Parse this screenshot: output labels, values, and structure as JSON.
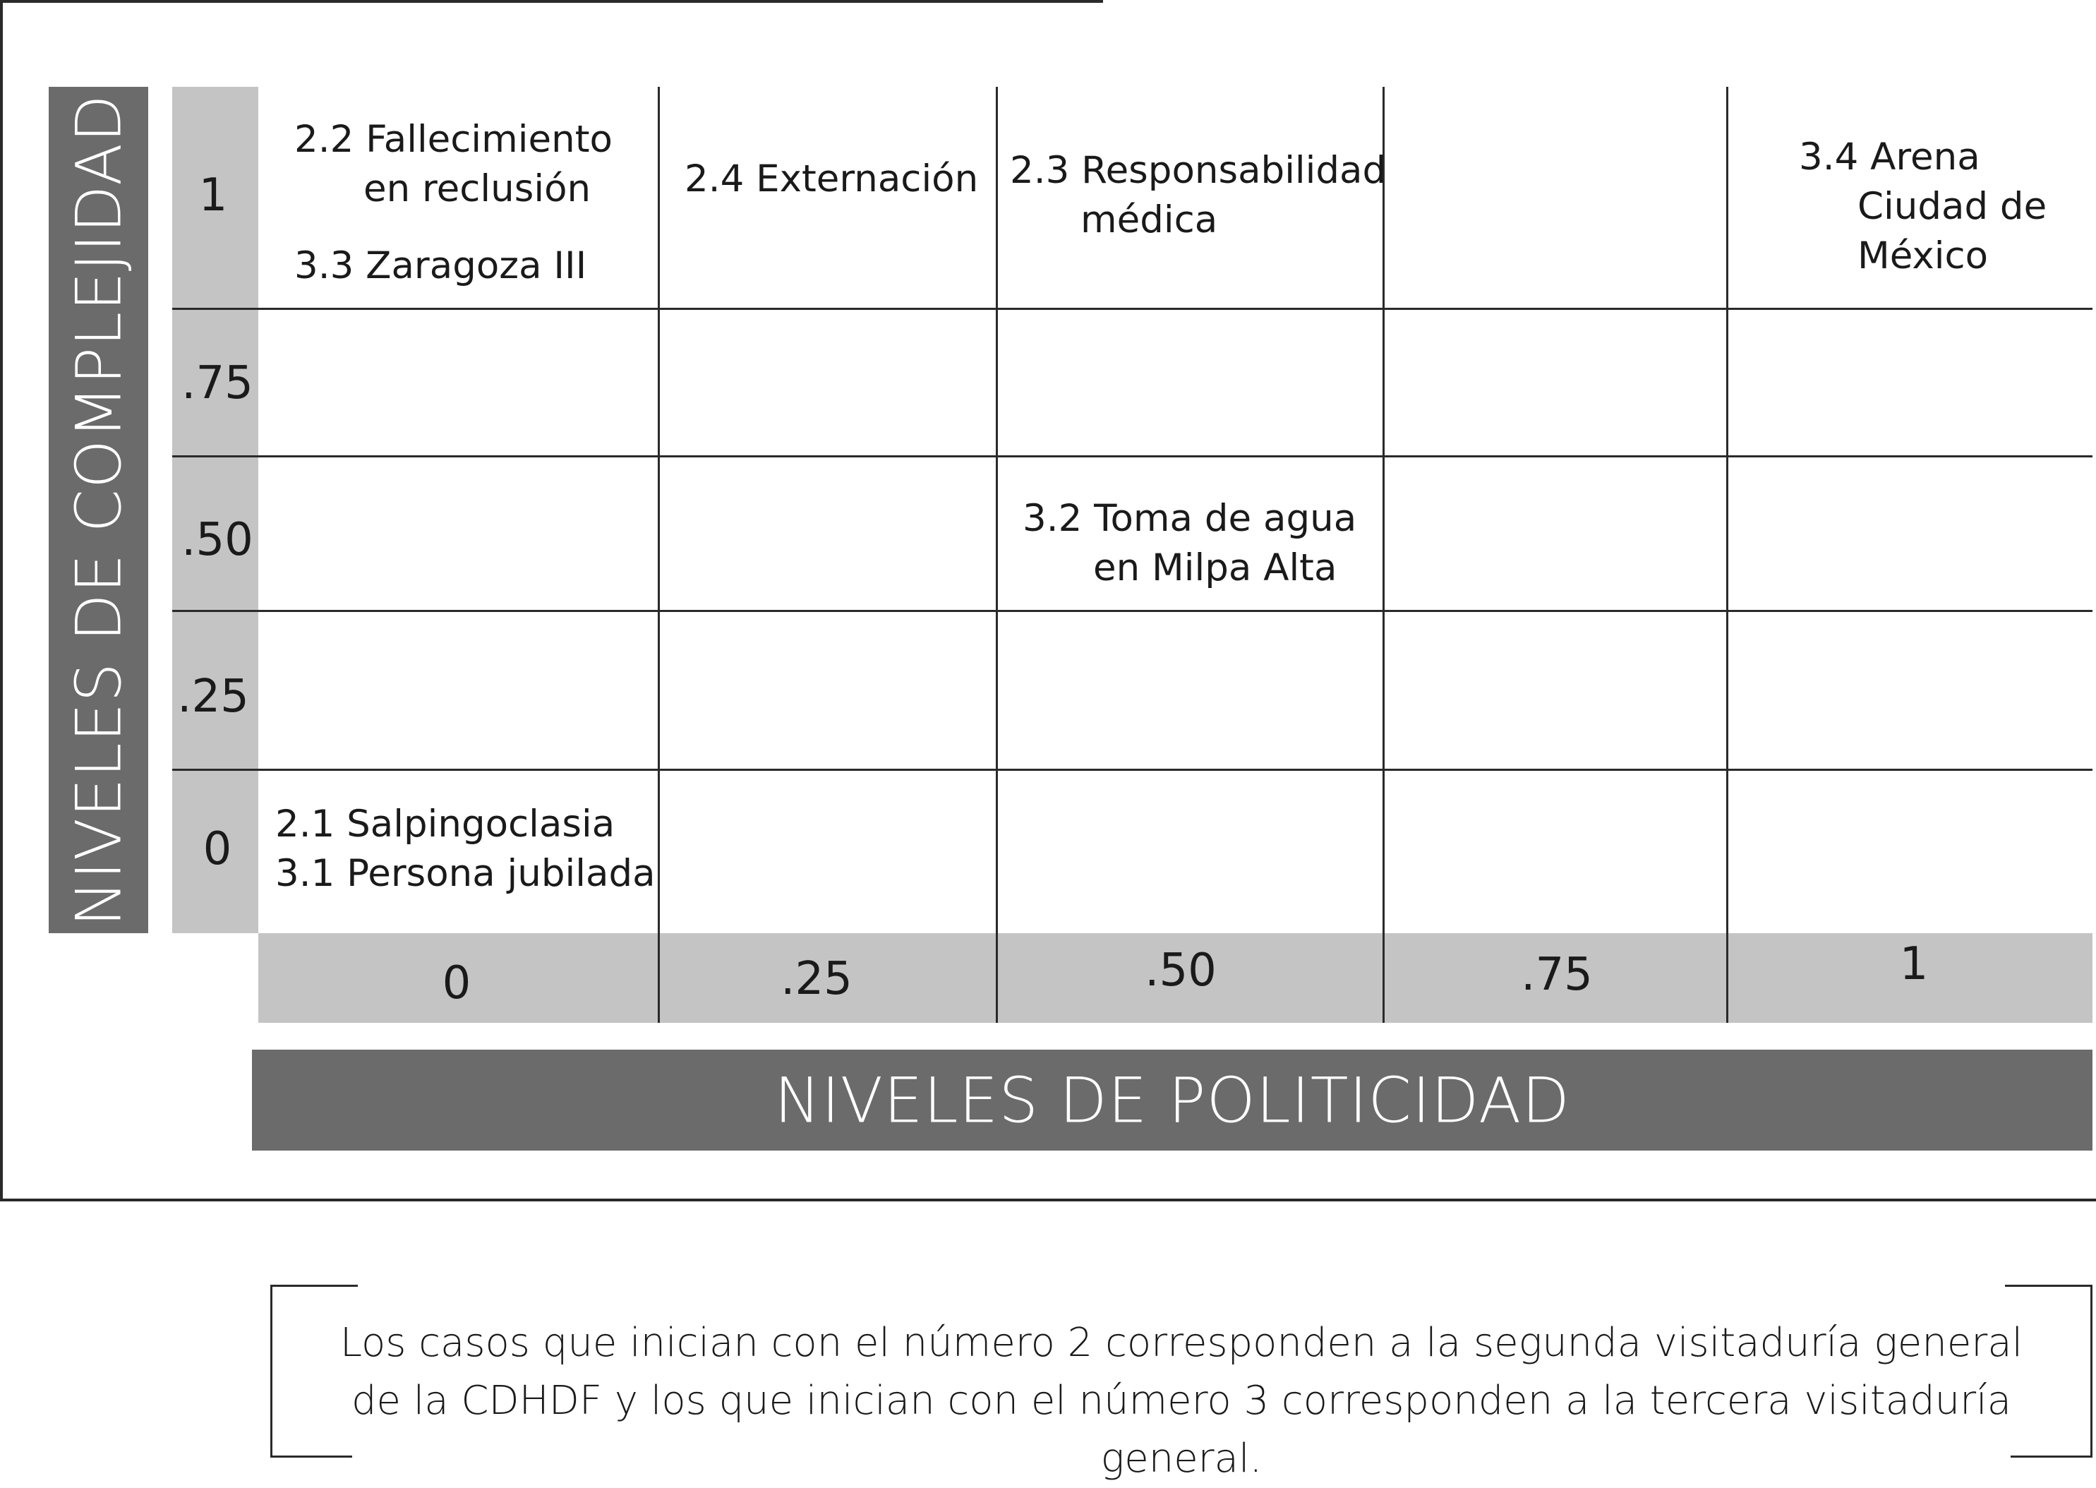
{
  "y_axis": {
    "title": "NIVELES DE COMPLEJIDAD",
    "ticks": [
      "1",
      ".75",
      ".50",
      ".25",
      "0"
    ]
  },
  "x_axis": {
    "title": "NIVELES DE POLITICIDAD",
    "ticks": [
      "0",
      ".25",
      ".50",
      ".75",
      "1"
    ]
  },
  "cells": {
    "c_1_0": {
      "line1": "2.2 Fallecimiento",
      "line2": "en reclusión",
      "line3": "3.3 Zaragoza III"
    },
    "c_1_25": {
      "line1": "2.4 Externación"
    },
    "c_1_50": {
      "line1": "2.3 Responsabilidad",
      "line2": "médica"
    },
    "c_1_100": {
      "line1": "3.4 Arena",
      "line2": "Ciudad de",
      "line3": "México"
    },
    "c_50_50": {
      "line1": "3.2 Toma de agua",
      "line2": "en Milpa Alta"
    },
    "c_0_0": {
      "line1": "2.1 Salpingoclasia",
      "line2": "3.1 Persona jubilada"
    }
  },
  "note": {
    "line1": "Los casos que inician con el número 2 corresponden a la segunda visitaduría general",
    "line2": "de la CDHDF y los que inician con el número 3 corresponden a la tercera visitaduría general."
  }
}
